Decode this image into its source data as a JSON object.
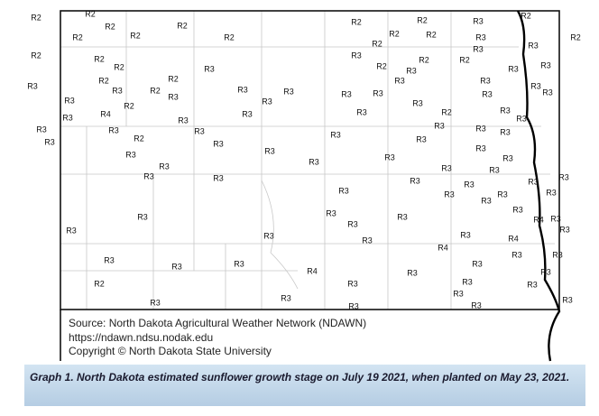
{
  "map": {
    "labels": [
      "R2",
      "R2",
      "R2",
      "R2",
      "R2",
      "R2",
      "R2",
      "R2",
      "R2",
      "R3",
      "R2",
      "R2",
      "R2",
      "R3",
      "R2",
      "R3",
      "R3",
      "R2",
      "R2",
      "R2",
      "R2",
      "R3",
      "R3",
      "R2",
      "R2",
      "R2",
      "R3",
      "R3",
      "R3",
      "R2",
      "R2",
      "R3",
      "R3",
      "R2",
      "R3",
      "R3",
      "R3",
      "R3",
      "R3",
      "R3",
      "R3",
      "R3",
      "R3",
      "R3",
      "R3",
      "R3",
      "R2",
      "R3",
      "R3",
      "R4",
      "R3",
      "R3",
      "R2",
      "R3",
      "R3",
      "R3",
      "R3",
      "R3",
      "R3",
      "R3",
      "R3",
      "R3",
      "R3",
      "R3",
      "R2",
      "R3",
      "R3",
      "R3",
      "R3",
      "R3",
      "R3",
      "R3",
      "R3",
      "R3",
      "R3",
      "R3",
      "R3",
      "R3",
      "R3",
      "R3",
      "R3",
      "R3",
      "R3",
      "R3",
      "R3",
      "R3",
      "R3",
      "R3",
      "R3",
      "R3",
      "R3",
      "R4",
      "R3",
      "R3",
      "R3",
      "R3",
      "R3",
      "R3",
      "R3",
      "R4",
      "R4",
      "R3",
      "R3",
      "R3",
      "R3",
      "R3",
      "R3",
      "R4",
      "R3",
      "R3",
      "R2",
      "R3",
      "R3",
      "R3",
      "R3",
      "R3",
      "R3",
      "R3",
      "R3",
      "R3"
    ]
  },
  "source": {
    "lines": [
      "Source: North Dakota Agricultural Weather Network (NDAWN)",
      "https://ndawn.ndsu.nodak.edu",
      "Copyright © North Dakota State University"
    ]
  },
  "caption": "Graph 1. North Dakota estimated sunflower growth stage on July 19 2021,  when planted on May 23, 2021."
}
